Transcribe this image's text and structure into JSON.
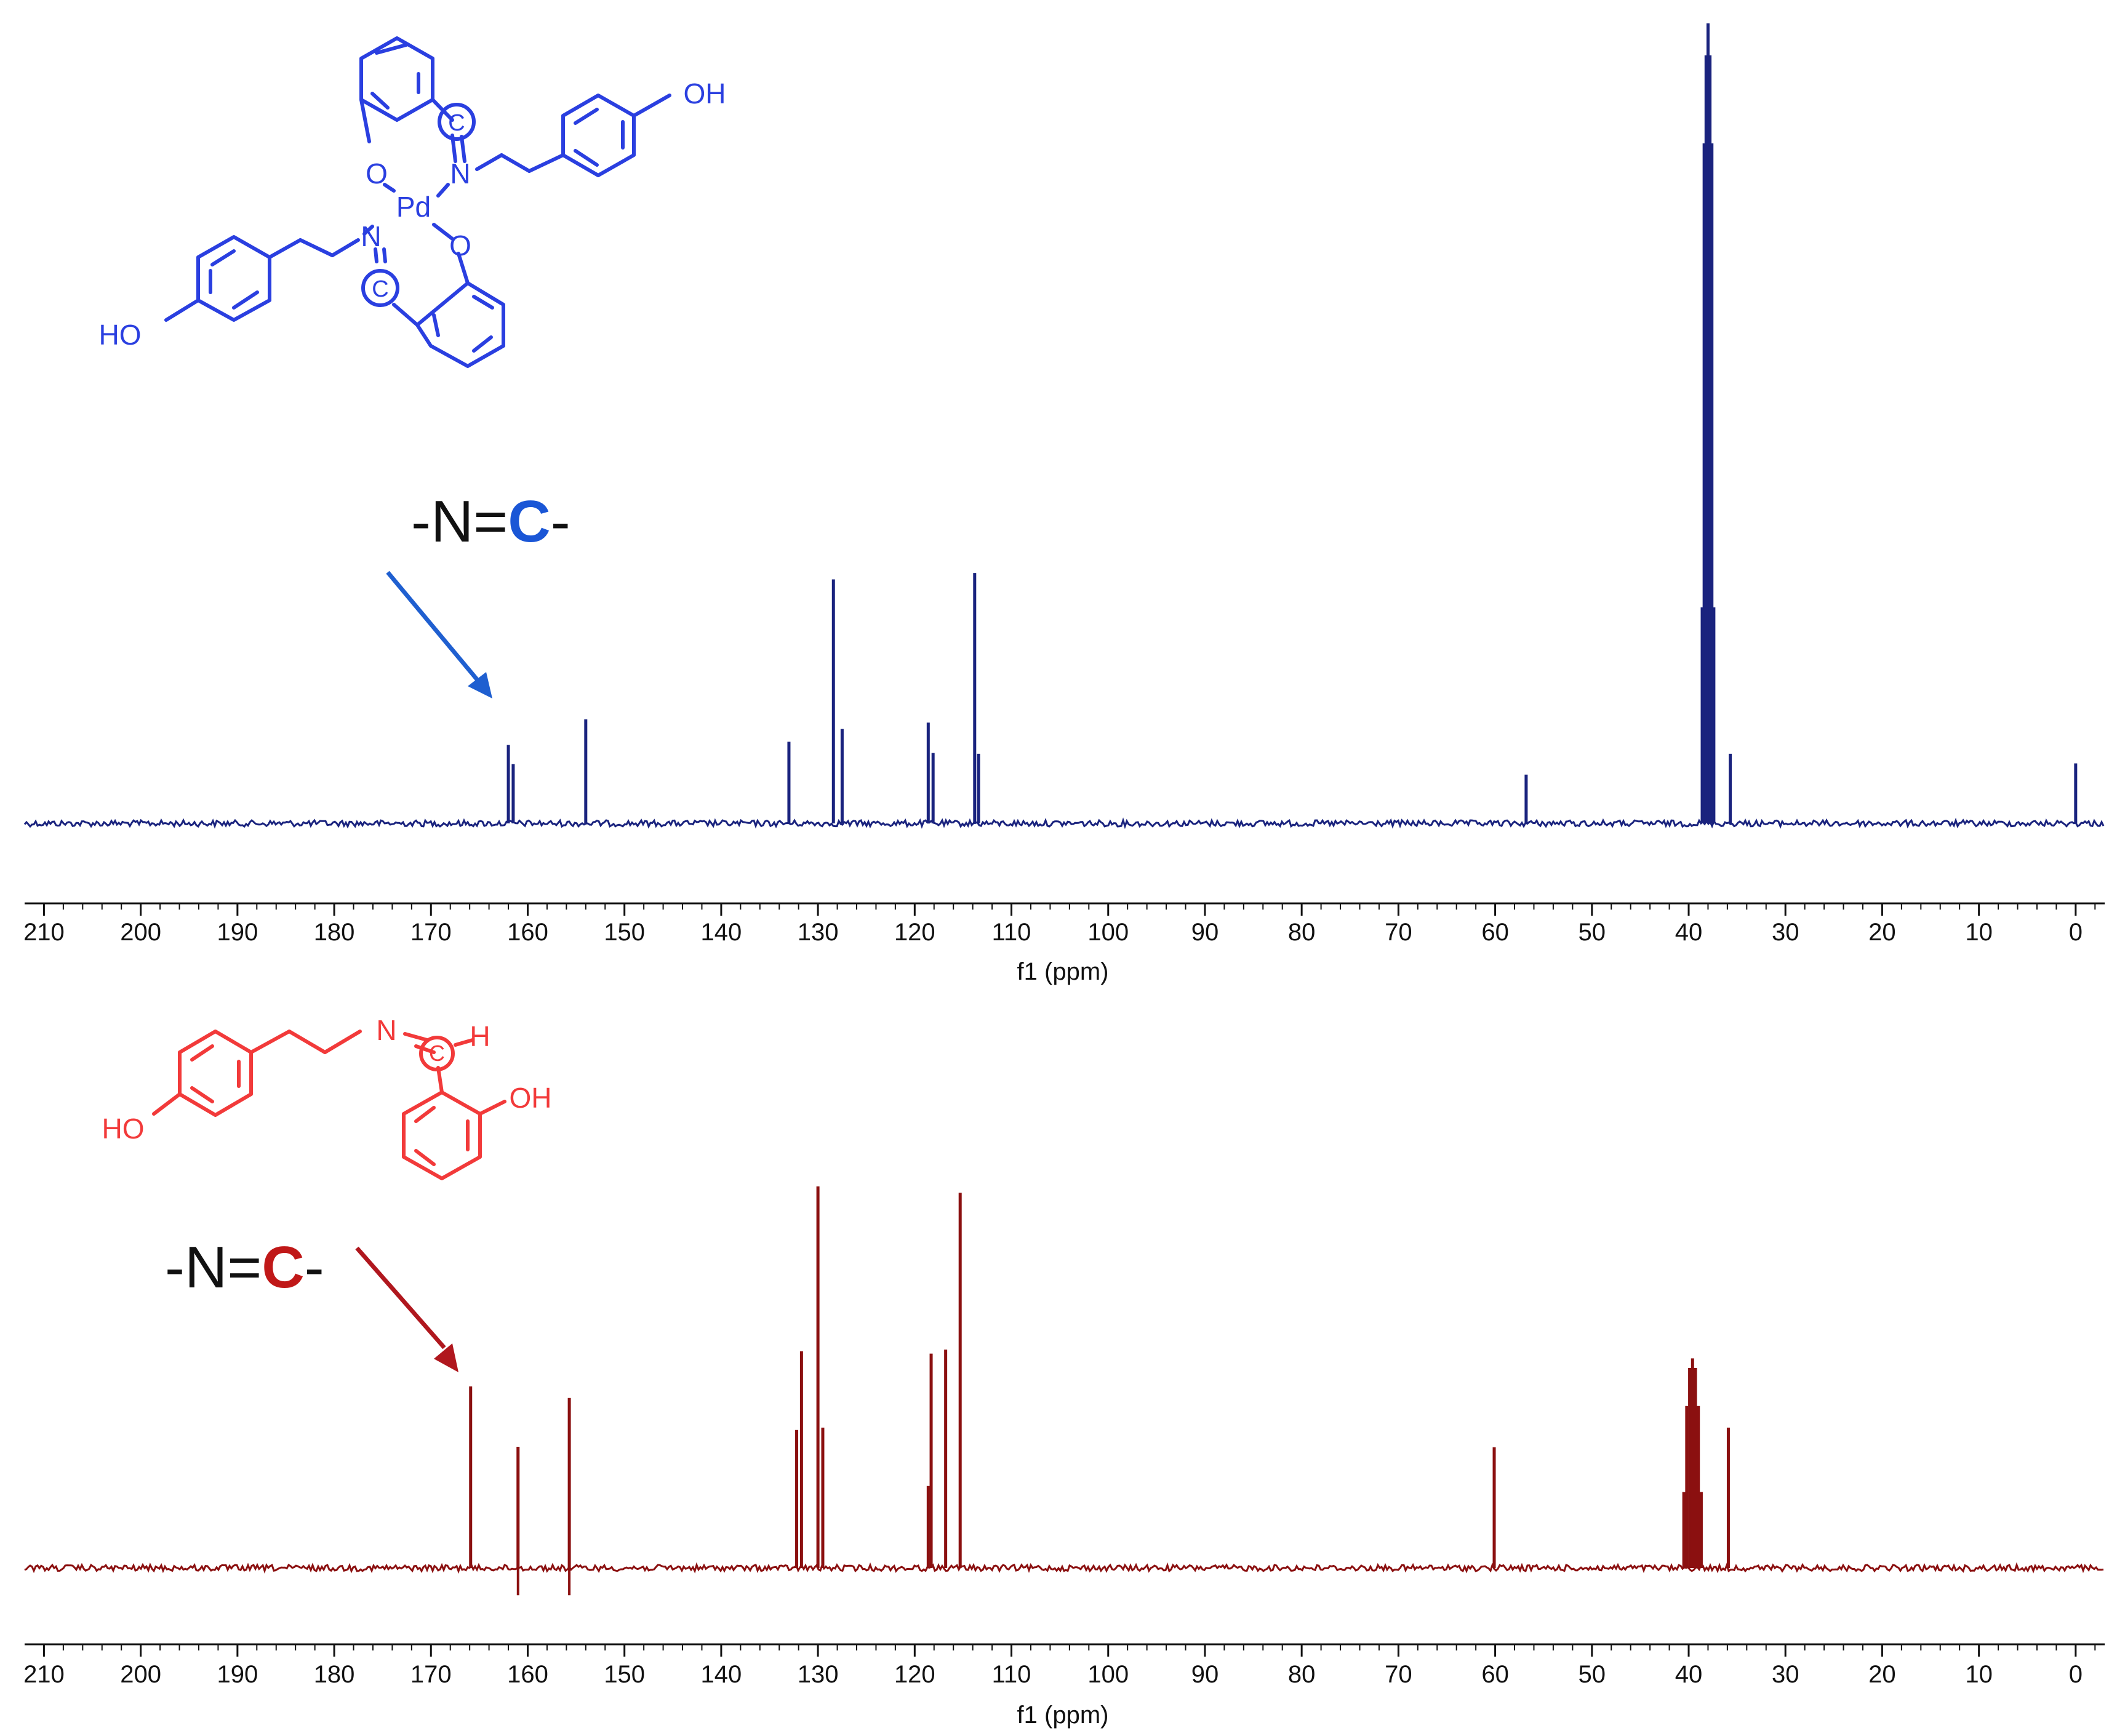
{
  "chart_data": [
    {
      "type": "line",
      "series_color": "#1a237e",
      "structure_color": "#2a3fe0",
      "arrow_color": "#1f5fd0",
      "annotation": {
        "prefix": "-N=",
        "emphasis": "C",
        "suffix": "-",
        "emphasis_color": "#1a56d6",
        "points_to_ppm": 162.0
      },
      "structure_labels": [
        "OH",
        "O",
        "N",
        "Pd",
        "N",
        "O",
        "HO",
        "C",
        "C"
      ],
      "xlabel": "f1 (ppm)",
      "xlim": [
        212,
        -3
      ],
      "ticks": [
        210,
        200,
        190,
        180,
        170,
        160,
        150,
        140,
        130,
        120,
        110,
        100,
        90,
        80,
        70,
        60,
        50,
        40,
        30,
        20,
        10,
        0
      ],
      "tick_labels": [
        "210",
        "200",
        "190",
        "180",
        "170",
        "160",
        "150",
        "140",
        "130",
        "120",
        "110",
        "100",
        "90",
        "80",
        "70",
        "60",
        "50",
        "40",
        "30",
        "20",
        "10",
        "0"
      ],
      "peaks": [
        {
          "x": 162.0,
          "y": 0.098
        },
        {
          "x": 161.5,
          "y": 0.074
        },
        {
          "x": 154.0,
          "y": 0.13
        },
        {
          "x": 133.0,
          "y": 0.102
        },
        {
          "x": 128.4,
          "y": 0.305
        },
        {
          "x": 127.5,
          "y": 0.118
        },
        {
          "x": 118.6,
          "y": 0.126
        },
        {
          "x": 118.1,
          "y": 0.088
        },
        {
          "x": 113.8,
          "y": 0.313
        },
        {
          "x": 113.4,
          "y": 0.087
        },
        {
          "x": 56.8,
          "y": 0.061
        },
        {
          "x": 38.6,
          "y": 0.27
        },
        {
          "x": 38.4,
          "y": 0.85
        },
        {
          "x": 38.2,
          "y": 0.96
        },
        {
          "x": 38.0,
          "y": 1.0
        },
        {
          "x": 37.8,
          "y": 0.96
        },
        {
          "x": 37.6,
          "y": 0.85
        },
        {
          "x": 37.4,
          "y": 0.27
        },
        {
          "x": 35.7,
          "y": 0.087
        },
        {
          "x": 0.0,
          "y": 0.075
        }
      ]
    },
    {
      "type": "line",
      "series_color": "#8b1010",
      "structure_color": "#f23a3a",
      "arrow_color": "#b0171e",
      "annotation": {
        "prefix": "-N=",
        "emphasis": "C",
        "suffix": "-",
        "emphasis_color": "#c01818",
        "points_to_ppm": 166.0
      },
      "structure_labels": [
        "H",
        "N",
        "HO",
        "OH",
        "C"
      ],
      "xlabel": "f1 (ppm)",
      "xlim": [
        212,
        -3
      ],
      "ticks": [
        210,
        200,
        190,
        180,
        170,
        160,
        150,
        140,
        130,
        120,
        110,
        100,
        90,
        80,
        70,
        60,
        50,
        40,
        30,
        20,
        10,
        0
      ],
      "tick_labels": [
        "210",
        "200",
        "190",
        "180",
        "170",
        "160",
        "150",
        "140",
        "130",
        "120",
        "110",
        "100",
        "90",
        "80",
        "70",
        "60",
        "50",
        "40",
        "30",
        "20",
        "10",
        "0"
      ],
      "peaks": [
        {
          "x": 165.9,
          "y": 0.454
        },
        {
          "x": 161.0,
          "y": 0.303
        },
        {
          "x": 155.7,
          "y": 0.425
        },
        {
          "x": 132.2,
          "y": 0.345
        },
        {
          "x": 131.7,
          "y": 0.542
        },
        {
          "x": 130.0,
          "y": 0.954
        },
        {
          "x": 129.5,
          "y": 0.351
        },
        {
          "x": 118.6,
          "y": 0.205
        },
        {
          "x": 118.3,
          "y": 0.536
        },
        {
          "x": 116.8,
          "y": 0.546
        },
        {
          "x": 115.3,
          "y": 0.938
        },
        {
          "x": 60.1,
          "y": 0.302
        },
        {
          "x": 40.5,
          "y": 0.19
        },
        {
          "x": 40.2,
          "y": 0.405
        },
        {
          "x": 39.9,
          "y": 0.5
        },
        {
          "x": 39.6,
          "y": 0.524
        },
        {
          "x": 39.3,
          "y": 0.5
        },
        {
          "x": 39.0,
          "y": 0.405
        },
        {
          "x": 38.7,
          "y": 0.19
        },
        {
          "x": 35.9,
          "y": 0.351
        }
      ],
      "negative_peaks": [
        {
          "x": 161.0,
          "y": -0.068
        },
        {
          "x": 155.7,
          "y": -0.068
        }
      ]
    }
  ]
}
